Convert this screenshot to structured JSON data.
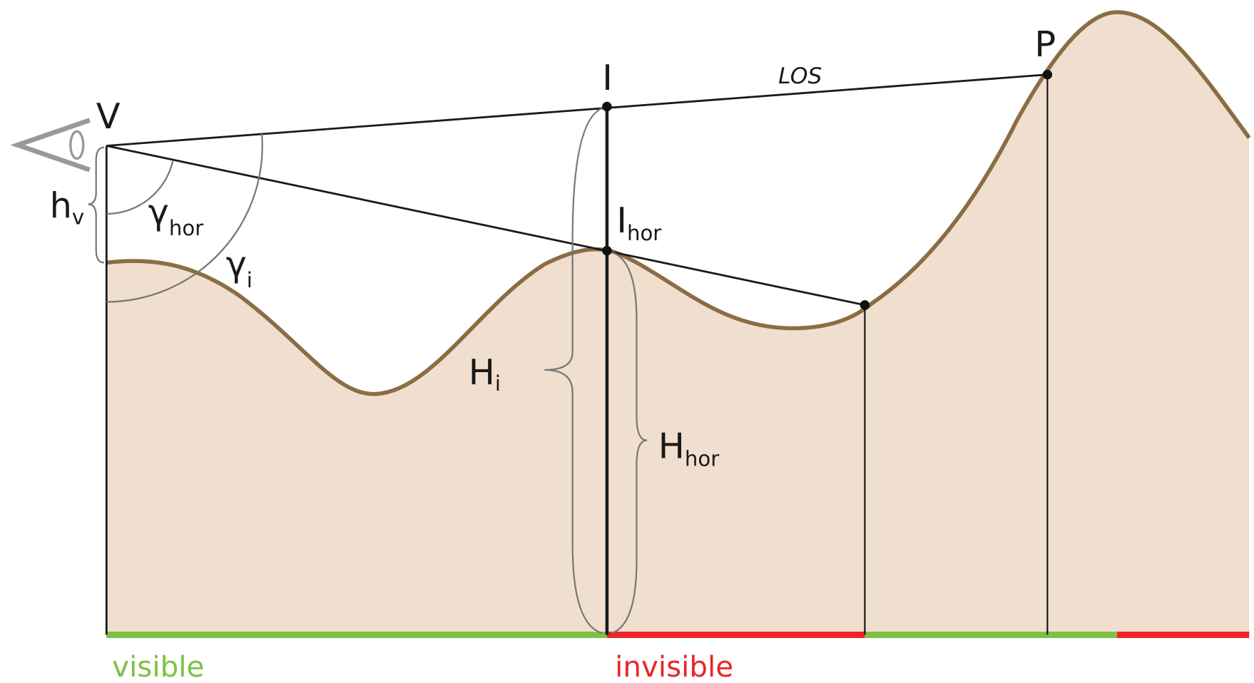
{
  "labels": {
    "viewer": "V",
    "viewer_height": {
      "main": "h",
      "sub": "v"
    },
    "gamma_hor": {
      "main": "γ",
      "sub": "hor"
    },
    "gamma_i": {
      "main": "γ",
      "sub": "i"
    },
    "intersection": "I",
    "los": "LOS",
    "target": "P",
    "horizon_point": {
      "main": "I",
      "sub": "hor"
    },
    "height_i": {
      "main": "H",
      "sub": "i"
    },
    "height_hor": {
      "main": "H",
      "sub": "hor"
    },
    "visible": "visible",
    "invisible": "invisible"
  }
}
